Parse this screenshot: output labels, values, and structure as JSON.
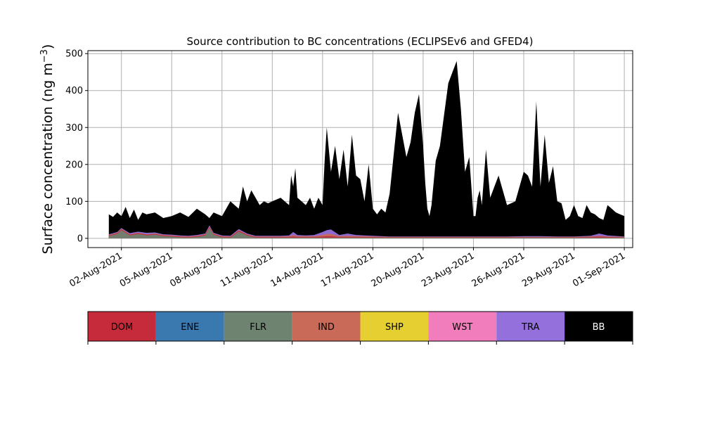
{
  "chart_data": {
    "type": "area",
    "stacked": true,
    "title": "Source contribution to BC concentrations (ECLIPSEv6 and GFED4)",
    "ylabel_main": "Surface concentration (ng m",
    "ylabel_sup": "−3",
    "ylabel_close": ")",
    "xlabel": "",
    "ylim": [
      -25,
      508
    ],
    "xlim": [
      "2021-07-31T00:00",
      "2021-09-01T12:00"
    ],
    "grid": true,
    "x_ticks": [
      {
        "date": "2021-08-02",
        "label": "02-Aug-2021"
      },
      {
        "date": "2021-08-05",
        "label": "05-Aug-2021"
      },
      {
        "date": "2021-08-08",
        "label": "08-Aug-2021"
      },
      {
        "date": "2021-08-11",
        "label": "11-Aug-2021"
      },
      {
        "date": "2021-08-14",
        "label": "14-Aug-2021"
      },
      {
        "date": "2021-08-17",
        "label": "17-Aug-2021"
      },
      {
        "date": "2021-08-20",
        "label": "20-Aug-2021"
      },
      {
        "date": "2021-08-23",
        "label": "23-Aug-2021"
      },
      {
        "date": "2021-08-26",
        "label": "26-Aug-2021"
      },
      {
        "date": "2021-08-29",
        "label": "29-Aug-2021"
      },
      {
        "date": "2021-09-01",
        "label": "01-Sep-2021"
      }
    ],
    "y_ticks": [
      {
        "value": 0,
        "label": "0"
      },
      {
        "value": 100,
        "label": "100"
      },
      {
        "value": 200,
        "label": "200"
      },
      {
        "value": 300,
        "label": "300"
      },
      {
        "value": 400,
        "label": "400"
      },
      {
        "value": 500,
        "label": "500"
      }
    ],
    "legend_position": "below",
    "legend": [
      {
        "key": "DOM",
        "label": "DOM",
        "color": "#c62b3c",
        "text_color": "#000000"
      },
      {
        "key": "ENE",
        "label": "ENE",
        "color": "#3979b0",
        "text_color": "#000000"
      },
      {
        "key": "FLR",
        "label": "FLR",
        "color": "#6f8371",
        "text_color": "#000000"
      },
      {
        "key": "IND",
        "label": "IND",
        "color": "#c96a59",
        "text_color": "#000000"
      },
      {
        "key": "SHP",
        "label": "SHP",
        "color": "#e6d031",
        "text_color": "#000000"
      },
      {
        "key": "WST",
        "label": "WST",
        "color": "#f27dbd",
        "text_color": "#000000"
      },
      {
        "key": "TRA",
        "label": "TRA",
        "color": "#9370db",
        "text_color": "#000000"
      },
      {
        "key": "BB",
        "label": "BB",
        "color": "#000000",
        "text_color": "#ffffff"
      }
    ],
    "total_series": {
      "name": "BB",
      "x": [
        "2021-08-01T06:00",
        "2021-08-01T12:00",
        "2021-08-01T18:00",
        "2021-08-02T00:00",
        "2021-08-02T06:00",
        "2021-08-02T12:00",
        "2021-08-02T18:00",
        "2021-08-03T00:00",
        "2021-08-03T06:00",
        "2021-08-03T12:00",
        "2021-08-04T00:00",
        "2021-08-04T12:00",
        "2021-08-05T00:00",
        "2021-08-05T12:00",
        "2021-08-06T00:00",
        "2021-08-06T12:00",
        "2021-08-07T00:00",
        "2021-08-07T06:00",
        "2021-08-07T12:00",
        "2021-08-08T00:00",
        "2021-08-08T12:00",
        "2021-08-09T00:00",
        "2021-08-09T06:00",
        "2021-08-09T12:00",
        "2021-08-09T18:00",
        "2021-08-10T00:00",
        "2021-08-10T06:00",
        "2021-08-10T12:00",
        "2021-08-10T18:00",
        "2021-08-11T00:00",
        "2021-08-11T12:00",
        "2021-08-12T00:00",
        "2021-08-12T03:00",
        "2021-08-12T06:00",
        "2021-08-12T09:00",
        "2021-08-12T12:00",
        "2021-08-12T18:00",
        "2021-08-13T00:00",
        "2021-08-13T06:00",
        "2021-08-13T12:00",
        "2021-08-13T18:00",
        "2021-08-14T00:00",
        "2021-08-14T03:00",
        "2021-08-14T06:00",
        "2021-08-14T12:00",
        "2021-08-14T18:00",
        "2021-08-15T00:00",
        "2021-08-15T06:00",
        "2021-08-15T12:00",
        "2021-08-15T18:00",
        "2021-08-16T00:00",
        "2021-08-16T06:00",
        "2021-08-16T12:00",
        "2021-08-16T18:00",
        "2021-08-17T00:00",
        "2021-08-17T06:00",
        "2021-08-17T12:00",
        "2021-08-17T18:00",
        "2021-08-18T00:00",
        "2021-08-18T12:00",
        "2021-08-19T00:00",
        "2021-08-19T06:00",
        "2021-08-19T12:00",
        "2021-08-19T18:00",
        "2021-08-20T00:00",
        "2021-08-20T03:00",
        "2021-08-20T06:00",
        "2021-08-20T09:00",
        "2021-08-20T12:00",
        "2021-08-20T18:00",
        "2021-08-21T00:00",
        "2021-08-21T12:00",
        "2021-08-22T00:00",
        "2021-08-22T06:00",
        "2021-08-22T12:00",
        "2021-08-22T18:00",
        "2021-08-23T00:00",
        "2021-08-23T03:00",
        "2021-08-23T06:00",
        "2021-08-23T09:00",
        "2021-08-23T12:00",
        "2021-08-23T18:00",
        "2021-08-24T00:00",
        "2021-08-24T12:00",
        "2021-08-25T00:00",
        "2021-08-25T12:00",
        "2021-08-26T00:00",
        "2021-08-26T06:00",
        "2021-08-26T12:00",
        "2021-08-26T18:00",
        "2021-08-27T00:00",
        "2021-08-27T06:00",
        "2021-08-27T12:00",
        "2021-08-27T18:00",
        "2021-08-28T00:00",
        "2021-08-28T06:00",
        "2021-08-28T12:00",
        "2021-08-28T18:00",
        "2021-08-29T00:00",
        "2021-08-29T06:00",
        "2021-08-29T12:00",
        "2021-08-29T18:00",
        "2021-08-30T00:00",
        "2021-08-30T06:00",
        "2021-08-30T12:00",
        "2021-08-30T18:00",
        "2021-08-31T00:00",
        "2021-08-31T06:00",
        "2021-08-31T12:00",
        "2021-08-31T18:00",
        "2021-09-01T00:00"
      ],
      "values": [
        65,
        58,
        70,
        60,
        85,
        55,
        78,
        50,
        70,
        65,
        70,
        55,
        60,
        70,
        58,
        80,
        65,
        55,
        70,
        60,
        100,
        80,
        140,
        100,
        130,
        110,
        90,
        100,
        95,
        100,
        110,
        90,
        170,
        140,
        190,
        110,
        100,
        90,
        110,
        80,
        110,
        90,
        210,
        300,
        180,
        250,
        160,
        240,
        140,
        280,
        170,
        160,
        100,
        200,
        80,
        65,
        80,
        70,
        120,
        340,
        220,
        260,
        340,
        390,
        250,
        150,
        80,
        60,
        90,
        210,
        250,
        420,
        480,
        350,
        180,
        220,
        60,
        60,
        110,
        130,
        90,
        240,
        110,
        170,
        90,
        100,
        180,
        170,
        140,
        370,
        140,
        280,
        150,
        195,
        100,
        95,
        50,
        60,
        90,
        60,
        55,
        90,
        70,
        65,
        55,
        50,
        90,
        80,
        70,
        65,
        60
      ],
      "note": ""
    },
    "minor_series": {
      "x": [
        "2021-08-01T06:00",
        "2021-08-01T18:00",
        "2021-08-02T00:00",
        "2021-08-02T12:00",
        "2021-08-03T00:00",
        "2021-08-03T12:00",
        "2021-08-04T00:00",
        "2021-08-04T12:00",
        "2021-08-05T00:00",
        "2021-08-05T12:00",
        "2021-08-06T00:00",
        "2021-08-06T12:00",
        "2021-08-07T00:00",
        "2021-08-07T06:00",
        "2021-08-07T12:00",
        "2021-08-08T00:00",
        "2021-08-08T12:00",
        "2021-08-09T00:00",
        "2021-08-09T12:00",
        "2021-08-10T00:00",
        "2021-08-10T12:00",
        "2021-08-11T00:00",
        "2021-08-11T12:00",
        "2021-08-12T00:00",
        "2021-08-12T06:00",
        "2021-08-12T12:00",
        "2021-08-13T00:00",
        "2021-08-13T12:00",
        "2021-08-14T00:00",
        "2021-08-14T06:00",
        "2021-08-14T12:00",
        "2021-08-15T00:00",
        "2021-08-15T12:00",
        "2021-08-16T00:00",
        "2021-08-16T12:00",
        "2021-08-17T00:00",
        "2021-08-18T00:00",
        "2021-08-19T00:00",
        "2021-08-20T00:00",
        "2021-08-21T00:00",
        "2021-08-22T00:00",
        "2021-08-23T00:00",
        "2021-08-24T00:00",
        "2021-08-25T00:00",
        "2021-08-26T00:00",
        "2021-08-27T00:00",
        "2021-08-28T00:00",
        "2021-08-29T00:00",
        "2021-08-30T00:00",
        "2021-08-30T12:00",
        "2021-08-31T00:00",
        "2021-09-01T00:00"
      ],
      "FLR": [
        6,
        12,
        22,
        8,
        12,
        8,
        10,
        6,
        5,
        3,
        2,
        4,
        8,
        28,
        10,
        3,
        2,
        18,
        8,
        2,
        2,
        2,
        2,
        2,
        2,
        2,
        2,
        2,
        2,
        2,
        2,
        2,
        2,
        2,
        2,
        2,
        2,
        2,
        2,
        2,
        2,
        2,
        2,
        2,
        2,
        2,
        2,
        2,
        2,
        2,
        2,
        2
      ],
      "DOM": [
        2,
        2,
        3,
        2,
        2,
        2,
        2,
        2,
        2,
        2,
        2,
        2,
        2,
        3,
        2,
        2,
        2,
        3,
        2,
        2,
        2,
        2,
        2,
        2,
        3,
        2,
        2,
        2,
        3,
        4,
        4,
        2,
        2,
        2,
        2,
        2,
        1,
        1,
        1,
        1,
        1,
        1,
        1,
        1,
        1,
        1,
        1,
        1,
        2,
        3,
        2,
        1
      ],
      "IND": [
        1,
        1,
        1,
        1,
        1,
        1,
        1,
        1,
        1,
        1,
        1,
        1,
        1,
        1,
        1,
        1,
        1,
        1,
        1,
        1,
        1,
        1,
        1,
        2,
        4,
        2,
        2,
        2,
        4,
        6,
        6,
        2,
        3,
        2,
        2,
        1,
        1,
        1,
        1,
        1,
        1,
        1,
        1,
        1,
        1,
        1,
        1,
        1,
        1,
        2,
        1,
        1
      ],
      "TRA": [
        2,
        2,
        2,
        3,
        3,
        4,
        3,
        2,
        2,
        2,
        2,
        2,
        2,
        3,
        2,
        2,
        2,
        3,
        2,
        2,
        2,
        2,
        2,
        2,
        8,
        3,
        2,
        3,
        8,
        10,
        12,
        3,
        6,
        3,
        2,
        2,
        1,
        1,
        1,
        1,
        1,
        1,
        1,
        1,
        2,
        2,
        1,
        1,
        2,
        6,
        3,
        1
      ]
    }
  }
}
